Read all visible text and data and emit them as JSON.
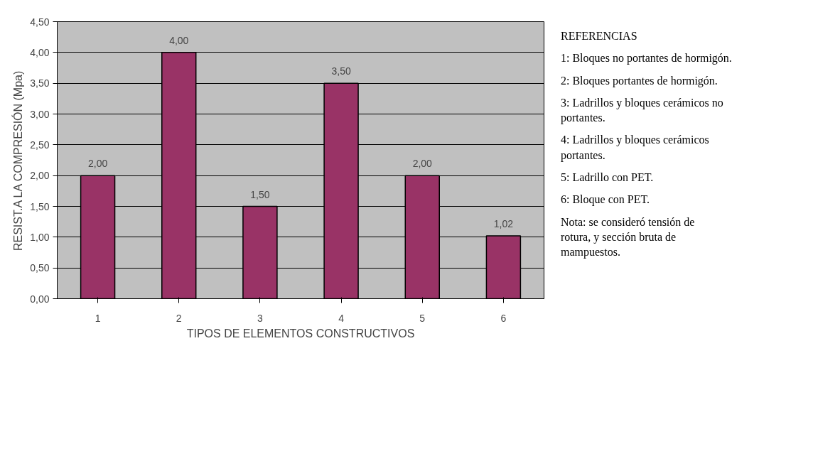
{
  "chart_data": {
    "type": "bar",
    "xlabel": "TIPOS DE ELEMENTOS CONSTRUCTIVOS",
    "ylabel": "RESIST.A LA COMPRESIÓN (Mpa)",
    "categories": [
      "1",
      "2",
      "3",
      "4",
      "5",
      "6"
    ],
    "values": [
      2.0,
      4.0,
      1.5,
      3.5,
      2.0,
      1.02
    ],
    "color": "#993366",
    "value_labels": [
      "2,00",
      "4,00",
      "1,50",
      "3,50",
      "2,00",
      "1,02"
    ],
    "ylim": [
      0,
      4.5
    ],
    "yticks": [
      {
        "value": 0,
        "label": "0,00"
      },
      {
        "value": 0.5,
        "label": "0,50"
      },
      {
        "value": 1,
        "label": "1,00"
      },
      {
        "value": 1.5,
        "label": "1,50"
      },
      {
        "value": 2,
        "label": "2,00"
      },
      {
        "value": 2.5,
        "label": "2,50"
      },
      {
        "value": 3,
        "label": "3,00"
      },
      {
        "value": 3.5,
        "label": "3,50"
      },
      {
        "value": 4,
        "label": "4,00"
      },
      {
        "value": 4.5,
        "label": "4,50"
      }
    ],
    "grid": "y",
    "annotations": [
      "REFERENCIAS",
      "1: Bloques no portantes de hormigón.",
      "2: Bloques portantes de hormigón.",
      "3: Ladrillos y bloques cerámicos no portantes.",
      "4: Ladrillos y bloques cerámicos portantes.",
      "5: Ladrillo con PET.",
      "6: Bloque con PET.",
      "Nota: se consideró tensión de rotura, y sección bruta de mampuestos."
    ]
  }
}
